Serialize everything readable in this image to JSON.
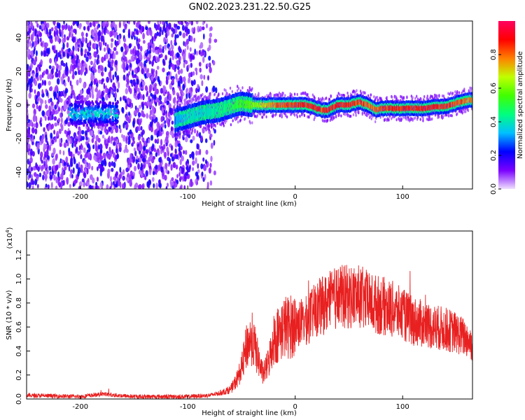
{
  "title": "GN02.2023.231.22.50.G25",
  "colors": {
    "background": "#ffffff",
    "axis": "#000000",
    "snr_line": "#e82020"
  },
  "chart_data": [
    {
      "type": "heatmap",
      "title": "GN02.2023.231.22.50.G25",
      "xlabel": "Height of straight line (km)",
      "ylabel": "Frequency (Hz)",
      "xlim": [
        -250,
        165
      ],
      "ylim": [
        -50,
        50
      ],
      "xticks": [
        -200,
        -100,
        0,
        100
      ],
      "xtick_labels": [
        "-200",
        "-100",
        "0",
        "100"
      ],
      "yticks": [
        -40,
        -20,
        0,
        20,
        40
      ],
      "ytick_labels": [
        "-40",
        "-20",
        "0",
        "20",
        "40"
      ],
      "noise_region": [
        -250,
        -72
      ],
      "noise_gap": [
        -165,
        -160
      ],
      "signal_blob": {
        "x": [
          -210,
          -165
        ],
        "center_freq": -5
      },
      "track": {
        "x": [
          -112,
          -100,
          -90,
          -80,
          -70,
          -60,
          -50,
          -40,
          -30,
          -20,
          -10,
          0,
          10,
          20,
          25,
          30,
          40,
          50,
          60,
          70,
          75,
          80,
          90,
          100,
          110,
          120,
          130,
          140,
          150,
          160,
          165
        ],
        "freq": [
          -9,
          -7,
          -5,
          -4,
          -3,
          -1,
          1,
          0,
          0,
          0,
          0,
          0,
          0,
          -2,
          -3,
          -3,
          0,
          0,
          2,
          -1,
          -3,
          -2,
          -2,
          -2,
          -2,
          -2,
          -1,
          -1,
          1,
          3,
          3
        ],
        "amplitude": [
          0.3,
          0.4,
          0.4,
          0.4,
          0.45,
          0.5,
          0.55,
          0.6,
          0.7,
          0.8,
          0.85,
          0.85,
          0.9,
          0.9,
          0.85,
          0.9,
          0.9,
          0.9,
          0.85,
          0.85,
          0.8,
          0.85,
          0.9,
          0.9,
          0.9,
          0.9,
          0.9,
          0.9,
          0.85,
          0.8,
          0.8
        ]
      },
      "colorbar": {
        "label": "Normalized spectral amplitude",
        "range": [
          0,
          1
        ],
        "ticks": [
          0.0,
          0.2,
          0.4,
          0.6,
          0.8
        ],
        "tick_labels": [
          "0.0",
          "0.2",
          "0.4",
          "0.6",
          "0.8"
        ],
        "colormap": [
          "#f0e0ff",
          "#7a00ff",
          "#0000ff",
          "#00c0ff",
          "#00ff80",
          "#40ff00",
          "#c0ff00",
          "#ff8000",
          "#ff0000",
          "#ff0060"
        ]
      },
      "grid": false
    },
    {
      "type": "line",
      "xlabel": "Height of straight line (km)",
      "ylabel": "SNR (10 * v/v)",
      "exponent_label": "(x10",
      "exponent_sup": "4",
      "exponent_close": ")",
      "xlim": [
        -250,
        165
      ],
      "ylim": [
        0,
        1.4
      ],
      "xticks": [
        -200,
        -100,
        0,
        100
      ],
      "xtick_labels": [
        "-200",
        "-100",
        "0",
        "100"
      ],
      "yticks": [
        0.0,
        0.2,
        0.4,
        0.6,
        0.8,
        1.0,
        1.2
      ],
      "ytick_labels": [
        "0.0",
        "0.2",
        "0.4",
        "0.6",
        "0.8",
        "1.0",
        "1.2"
      ],
      "series": [
        {
          "x": [
            -250,
            -200,
            -180,
            -150,
            -100,
            -80,
            -70,
            -60,
            -55,
            -50,
            -45,
            -40,
            -35,
            -30,
            -25,
            -20,
            -15,
            -10,
            -5,
            0,
            10,
            20,
            30,
            40,
            50,
            60,
            70,
            80,
            90,
            100,
            110,
            120,
            130,
            140,
            150,
            160,
            165
          ],
          "y": [
            0.03,
            0.02,
            0.04,
            0.02,
            0.02,
            0.03,
            0.05,
            0.08,
            0.15,
            0.25,
            0.45,
            0.5,
            0.35,
            0.2,
            0.3,
            0.5,
            0.55,
            0.6,
            0.6,
            0.62,
            0.65,
            0.75,
            0.8,
            0.85,
            0.85,
            0.85,
            0.8,
            0.78,
            0.75,
            0.7,
            0.65,
            0.62,
            0.6,
            0.58,
            0.55,
            0.5,
            0.45
          ]
        }
      ],
      "grid": false
    }
  ]
}
